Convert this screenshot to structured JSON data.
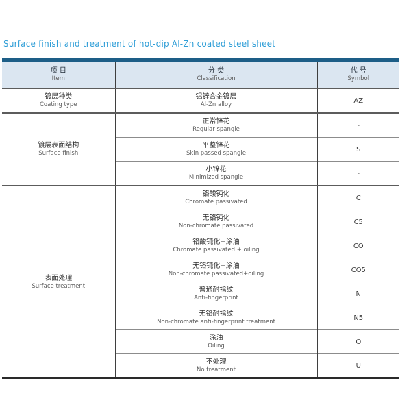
{
  "page_title": "Surface finish and treatment of hot-dip Al-Zn coated steel sheet",
  "colors": {
    "title_text": "#2f9ed7",
    "top_bar": "#1d5e87",
    "header_bg": "#dbe6f1",
    "group_line": "#5c5c5c",
    "inner_line": "#8c8c8c"
  },
  "table": {
    "headers": [
      {
        "cn": "项  目",
        "en": "Item"
      },
      {
        "cn": "分  类",
        "en": "Classification"
      },
      {
        "cn": "代 号",
        "en": "Symbol"
      }
    ],
    "groups": [
      {
        "item_cn": "镀层种类",
        "item_en": "Coating type",
        "rows": [
          {
            "cn": "铝锌合金镀层",
            "en": "Al-Zn alloy",
            "symbol": "AZ"
          }
        ]
      },
      {
        "item_cn": "镀层表面结构",
        "item_en": "Surface finish",
        "rows": [
          {
            "cn": "正常锌花",
            "en": "Regular spangle",
            "symbol": "-"
          },
          {
            "cn": "平整锌花",
            "en": "Skin passed spangle",
            "symbol": "S"
          },
          {
            "cn": "小锌花",
            "en": "Minimized spangle",
            "symbol": "-"
          }
        ]
      },
      {
        "item_cn": "表面处理",
        "item_en": "Surface treatment",
        "rows": [
          {
            "cn": "铬酸钝化",
            "en": "Chromate passivated",
            "symbol": "C"
          },
          {
            "cn": "无铬钝化",
            "en": "Non-chromate passivated",
            "symbol": "C5"
          },
          {
            "cn": "铬酸钝化+涂油",
            "en": "Chromate passivated + oiling",
            "symbol": "CO"
          },
          {
            "cn": "无铬钝化+涂油",
            "en": "Non-chromate passivated+oiling",
            "symbol": "CO5"
          },
          {
            "cn": "普通耐指纹",
            "en": "Anti-fingerprint",
            "symbol": "N"
          },
          {
            "cn": "无铬耐指纹",
            "en": "Non-chromate anti-fingerprint treatment",
            "symbol": "N5"
          },
          {
            "cn": "涂油",
            "en": "Oiling",
            "symbol": "O"
          },
          {
            "cn": "不处理",
            "en": "No treatment",
            "symbol": "U"
          }
        ]
      }
    ]
  }
}
